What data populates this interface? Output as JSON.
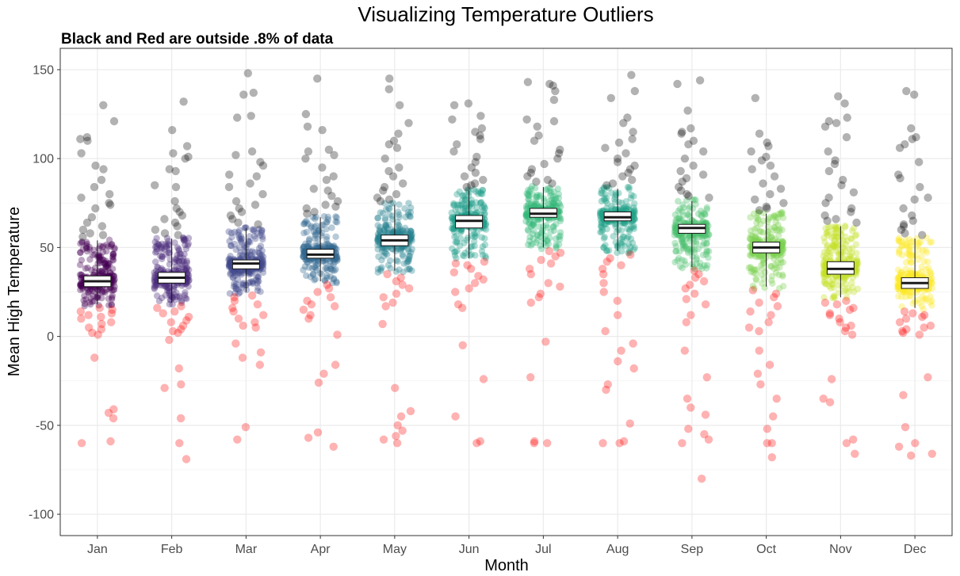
{
  "chart_data": {
    "type": "scatter",
    "title": "Visualizing Temperature Outliers",
    "subtitle": "Black and Red are outside .8% of data",
    "xlabel": "Month",
    "ylabel": "Mean High Temperature",
    "ylim": [
      -112,
      162
    ],
    "y_ticks": [
      "150",
      "100",
      "50",
      "0",
      "-50",
      "-100"
    ],
    "y_tick_values": [
      150,
      100,
      50,
      0,
      -50,
      -100
    ],
    "categories": [
      "Jan",
      "Feb",
      "Mar",
      "Apr",
      "May",
      "Jun",
      "Jul",
      "Aug",
      "Sep",
      "Oct",
      "Nov",
      "Dec"
    ],
    "fill_colors": [
      "#440154",
      "#482878",
      "#3E4989",
      "#31688E",
      "#26828E",
      "#1F9E89",
      "#35B779",
      "#6DCD59",
      "#B4DE2C",
      "#FDE725",
      "#D2E21B",
      "#FDE725"
    ],
    "outlier_high_color": "#000000",
    "outlier_low_color": "#FF0000",
    "grid": true,
    "months": [
      {
        "month": "Jan",
        "color": "#440154",
        "lower_bound": 17,
        "upper_bound": 55,
        "q1": 28,
        "median": 31,
        "q3": 34,
        "whisker_low": 18,
        "whisker_high": 54,
        "high_outliers": [
          130,
          121,
          112,
          111,
          110,
          103,
          96,
          94,
          88,
          84,
          80,
          78,
          75,
          74,
          72,
          67,
          64,
          62,
          60,
          58,
          57,
          56
        ],
        "low_outliers": [
          16,
          15,
          14,
          13,
          12,
          11,
          10,
          8,
          7,
          5,
          4,
          2,
          1,
          -12,
          -41,
          -43,
          -46,
          -59,
          -60
        ]
      },
      {
        "month": "Feb",
        "color": "#482878",
        "lower_bound": 18,
        "upper_bound": 56,
        "q1": 30,
        "median": 33,
        "q3": 36,
        "whisker_low": 19,
        "whisker_high": 55,
        "high_outliers": [
          132,
          116,
          107,
          103,
          101,
          100,
          94,
          93,
          85,
          84,
          76,
          72,
          70,
          68,
          66,
          64,
          62,
          60,
          58,
          57
        ],
        "low_outliers": [
          17,
          16,
          14,
          13,
          11,
          9,
          8,
          6,
          4,
          3,
          2,
          -2,
          -18,
          -27,
          -29,
          -46,
          -60,
          -69
        ]
      },
      {
        "month": "Mar",
        "color": "#3E4989",
        "lower_bound": 24,
        "upper_bound": 62,
        "q1": 38,
        "median": 41,
        "q3": 43,
        "whisker_low": 25,
        "whisker_high": 61,
        "high_outliers": [
          148,
          137,
          136,
          124,
          123,
          104,
          102,
          98,
          96,
          91,
          90,
          86,
          84,
          80,
          76,
          74,
          72,
          70,
          68,
          66,
          64,
          63
        ],
        "low_outliers": [
          23,
          22,
          20,
          18,
          16,
          14,
          12,
          10,
          8,
          6,
          5,
          -4,
          -9,
          -12,
          -16,
          -51,
          -58
        ]
      },
      {
        "month": "Apr",
        "color": "#31688E",
        "lower_bound": 30,
        "upper_bound": 68,
        "q1": 44,
        "median": 46,
        "q3": 49,
        "whisker_low": 31,
        "whisker_high": 67,
        "high_outliers": [
          145,
          125,
          118,
          116,
          105,
          104,
          102,
          100,
          95,
          90,
          88,
          83,
          82,
          79,
          76,
          74,
          73,
          72,
          70,
          69
        ],
        "low_outliers": [
          29,
          27,
          25,
          22,
          20,
          18,
          17,
          15,
          12,
          10,
          1,
          -16,
          -21,
          -26,
          -54,
          -57,
          -62
        ]
      },
      {
        "month": "May",
        "color": "#26828E",
        "lower_bound": 36,
        "upper_bound": 75,
        "q1": 51,
        "median": 54,
        "q3": 57,
        "whisker_low": 37,
        "whisker_high": 74,
        "high_outliers": [
          145,
          139,
          130,
          120,
          114,
          110,
          108,
          106,
          100,
          95,
          93,
          90,
          86,
          84,
          82,
          80,
          78,
          77,
          76
        ],
        "low_outliers": [
          35,
          33,
          31,
          29,
          27,
          24,
          22,
          19,
          17,
          7,
          -29,
          -42,
          -45,
          -50,
          -53,
          -56,
          -58,
          -60
        ]
      },
      {
        "month": "Jun",
        "color": "#1F9E89",
        "lower_bound": 43,
        "upper_bound": 83,
        "q1": 61,
        "median": 65,
        "q3": 68,
        "whisker_low": 44,
        "whisker_high": 82,
        "high_outliers": [
          131,
          130,
          124,
          122,
          117,
          115,
          113,
          111,
          108,
          104,
          101,
          98,
          95,
          92,
          90,
          88,
          86,
          85,
          84
        ],
        "low_outliers": [
          42,
          41,
          40,
          38,
          36,
          34,
          32,
          30,
          27,
          25,
          18,
          16,
          -5,
          -24,
          -45,
          -59,
          -60
        ]
      },
      {
        "month": "Jul",
        "color": "#35B779",
        "lower_bound": 49,
        "upper_bound": 85,
        "q1": 67,
        "median": 69,
        "q3": 72,
        "whisker_low": 50,
        "whisker_high": 84,
        "high_outliers": [
          143,
          142,
          141,
          138,
          133,
          122,
          121,
          118,
          113,
          110,
          105,
          103,
          100,
          97,
          94,
          92,
          90,
          88,
          87,
          86
        ],
        "low_outliers": [
          48,
          47,
          45,
          43,
          41,
          38,
          35,
          30,
          28,
          24,
          22,
          19,
          -3,
          -23,
          -59,
          -60,
          -60
        ]
      },
      {
        "month": "Aug",
        "color": "#1FA187",
        "lower_bound": 47,
        "upper_bound": 84,
        "q1": 65,
        "median": 67,
        "q3": 70,
        "whisker_low": 48,
        "whisker_high": 83,
        "high_outliers": [
          147,
          138,
          134,
          123,
          120,
          115,
          111,
          109,
          106,
          103,
          100,
          98,
          96,
          94,
          92,
          90,
          88,
          86,
          85
        ],
        "low_outliers": [
          46,
          44,
          42,
          40,
          38,
          35,
          30,
          25,
          20,
          12,
          3,
          -4,
          -8,
          -14,
          -18,
          -27,
          -30,
          -49,
          -59,
          -60,
          -60
        ]
      },
      {
        "month": "Sep",
        "color": "#4AC16D",
        "lower_bound": 38,
        "upper_bound": 77,
        "q1": 58,
        "median": 61,
        "q3": 63,
        "whisker_low": 39,
        "whisker_high": 76,
        "high_outliers": [
          144,
          142,
          127,
          117,
          115,
          114,
          110,
          108,
          104,
          100,
          96,
          93,
          91,
          89,
          87,
          84,
          82,
          80,
          79,
          78
        ],
        "low_outliers": [
          37,
          35,
          33,
          31,
          29,
          27,
          24,
          21,
          18,
          12,
          8,
          -8,
          -23,
          -35,
          -40,
          -44,
          -52,
          -55,
          -58,
          -60,
          -80
        ]
      },
      {
        "month": "Oct",
        "color": "#7AD151",
        "lower_bound": 27,
        "upper_bound": 70,
        "q1": 47,
        "median": 50,
        "q3": 53,
        "whisker_low": 28,
        "whisker_high": 69,
        "high_outliers": [
          134,
          114,
          109,
          107,
          104,
          101,
          99,
          96,
          94,
          90,
          86,
          83,
          80,
          77,
          75,
          73,
          72,
          71
        ],
        "low_outliers": [
          26,
          24,
          22,
          19,
          17,
          14,
          12,
          8,
          5,
          3,
          -8,
          -16,
          -21,
          -27,
          -35,
          -45,
          -52,
          -60,
          -60,
          -68
        ]
      },
      {
        "month": "Nov",
        "color": "#C2DF23",
        "lower_bound": 21,
        "upper_bound": 63,
        "q1": 35,
        "median": 38,
        "q3": 42,
        "whisker_low": 22,
        "whisker_high": 62,
        "high_outliers": [
          135,
          131,
          123,
          121,
          120,
          118,
          112,
          104,
          99,
          97,
          93,
          88,
          85,
          81,
          78,
          75,
          72,
          70,
          68,
          66,
          65,
          64
        ],
        "low_outliers": [
          20,
          19,
          18,
          16,
          15,
          13,
          12,
          10,
          8,
          6,
          5,
          3,
          1,
          -24,
          -35,
          -37,
          -58,
          -60,
          -66
        ]
      },
      {
        "month": "Dec",
        "color": "#FDE725",
        "lower_bound": 15,
        "upper_bound": 56,
        "q1": 27,
        "median": 30,
        "q3": 33,
        "whisker_low": 16,
        "whisker_high": 55,
        "high_outliers": [
          138,
          136,
          117,
          112,
          111,
          108,
          106,
          98,
          91,
          89,
          84,
          78,
          77,
          72,
          68,
          65,
          63,
          62,
          60,
          58,
          57
        ],
        "low_outliers": [
          14,
          13,
          12,
          11,
          10,
          8,
          6,
          5,
          4,
          3,
          2,
          1,
          -23,
          -33,
          -51,
          -60,
          -62,
          -66,
          -67
        ]
      }
    ]
  }
}
